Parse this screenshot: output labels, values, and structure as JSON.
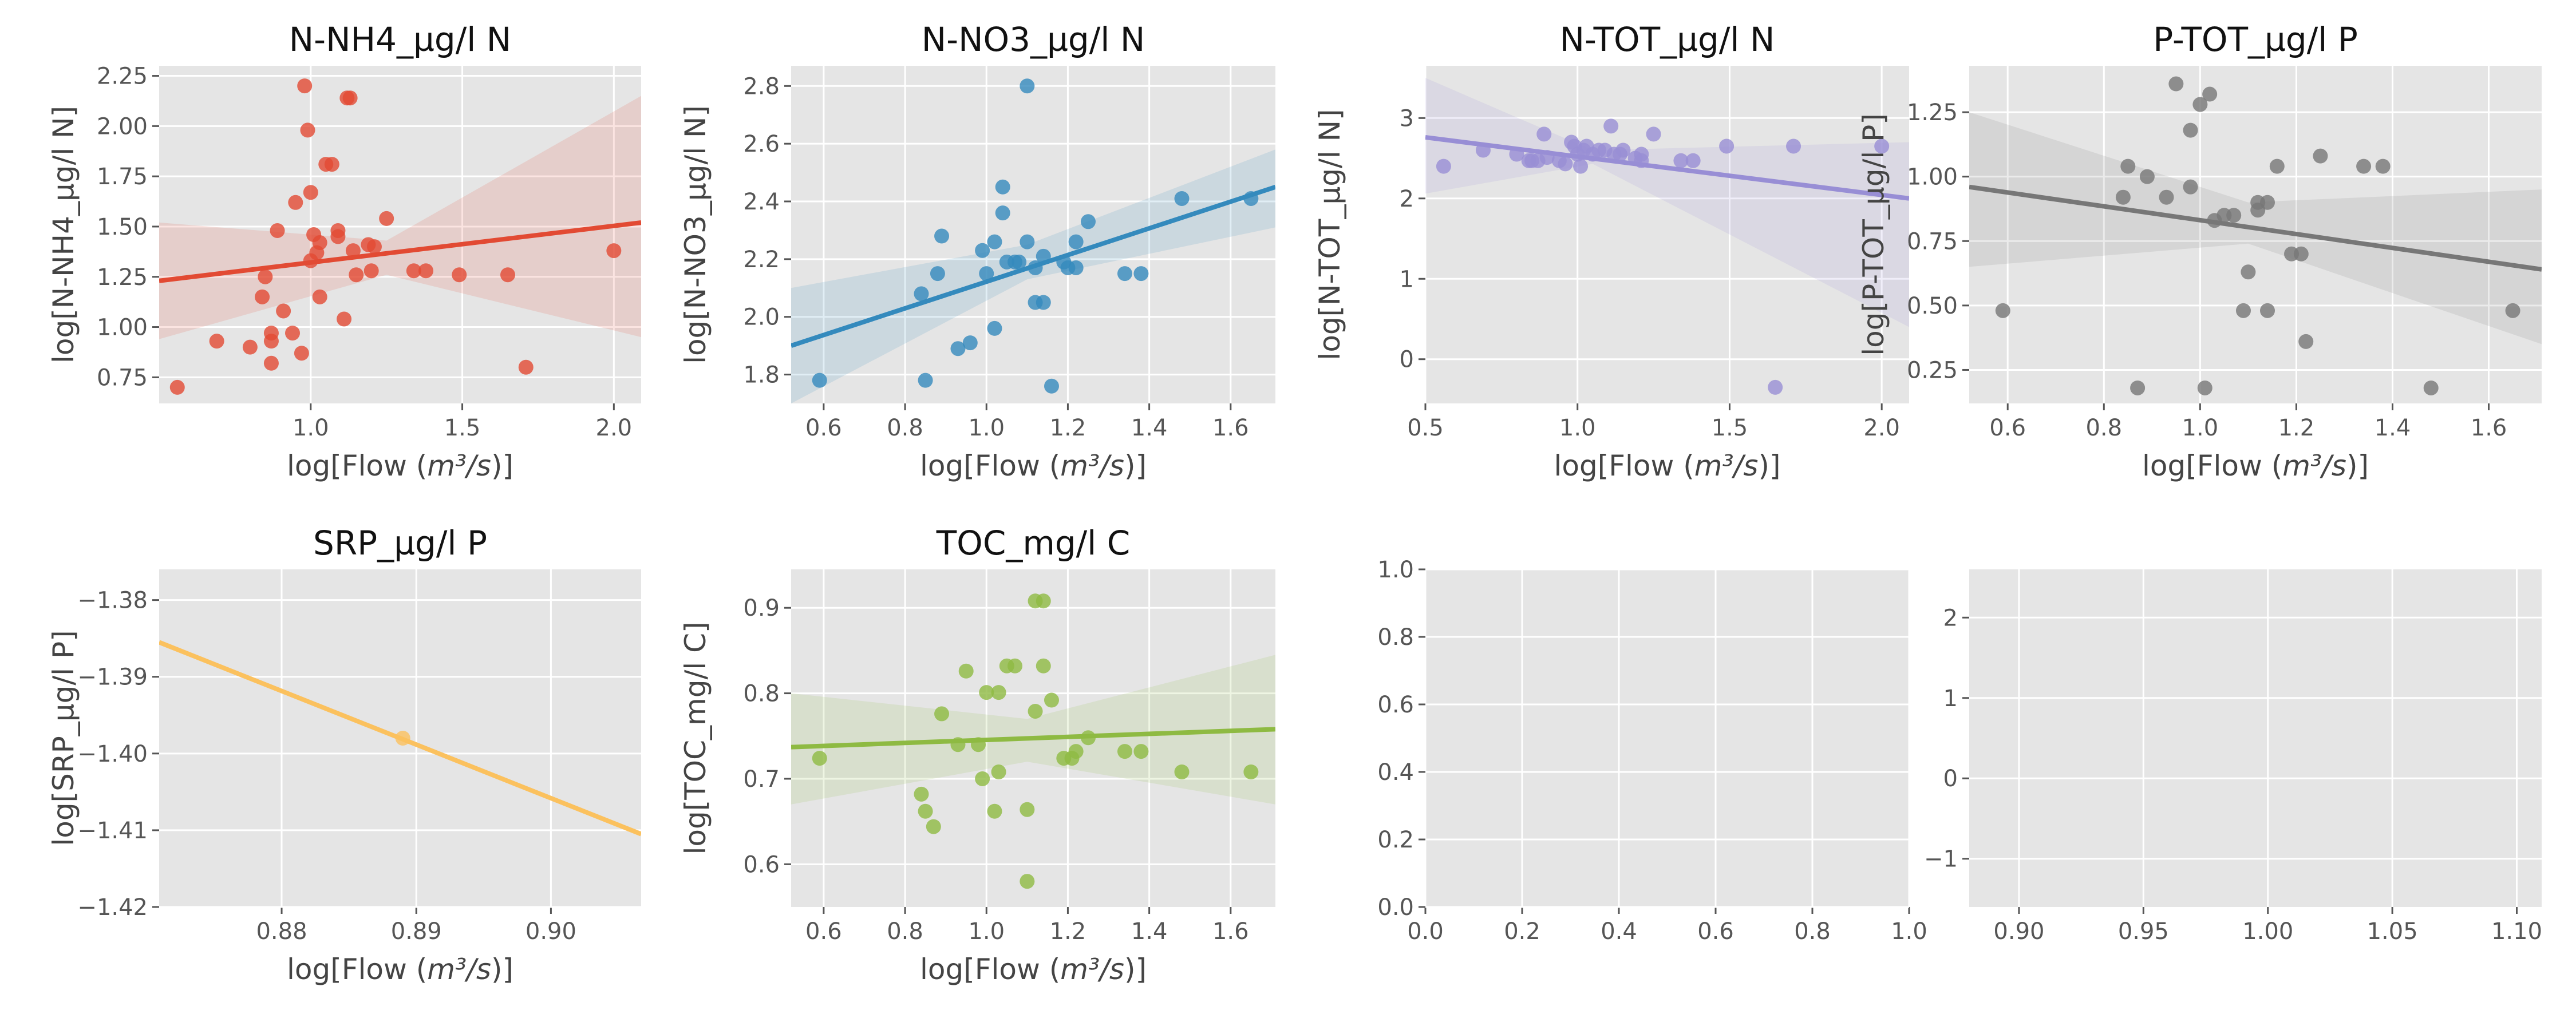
{
  "chart_data": [
    {
      "type": "scatter",
      "title": "N-NH4_µg/l N",
      "xlabel": "log[Flow (m³/s)]",
      "ylabel": "log[N-NH4_µg/l N]",
      "xlim": [
        0.5,
        2.09
      ],
      "ylim": [
        0.62,
        2.3
      ],
      "xticks": [
        "1.0",
        "1.5",
        "2.0"
      ],
      "yticks": [
        "0.75",
        "1.00",
        "1.25",
        "1.50",
        "1.75",
        "2.00",
        "2.25"
      ],
      "color": "#E24A33",
      "show_regression": true,
      "regression_line": [
        [
          0.5,
          1.23
        ],
        [
          2.09,
          1.52
        ]
      ],
      "ci_band": {
        "x": [
          0.5,
          1.25,
          2.09
        ],
        "lower": [
          0.94,
          1.26,
          0.95
        ],
        "upper": [
          1.52,
          1.43,
          2.15
        ]
      },
      "points": [
        [
          0.56,
          0.7
        ],
        [
          0.69,
          0.93
        ],
        [
          0.8,
          0.9
        ],
        [
          0.84,
          1.15
        ],
        [
          0.85,
          1.25
        ],
        [
          0.87,
          0.97
        ],
        [
          0.87,
          0.93
        ],
        [
          0.87,
          0.82
        ],
        [
          0.89,
          1.48
        ],
        [
          0.91,
          1.08
        ],
        [
          0.94,
          0.97
        ],
        [
          0.95,
          1.62
        ],
        [
          0.97,
          0.87
        ],
        [
          0.98,
          2.2
        ],
        [
          0.99,
          1.98
        ],
        [
          1.0,
          1.67
        ],
        [
          1.0,
          1.33
        ],
        [
          1.01,
          1.46
        ],
        [
          1.02,
          1.37
        ],
        [
          1.03,
          1.42
        ],
        [
          1.03,
          1.15
        ],
        [
          1.05,
          1.81
        ],
        [
          1.07,
          1.81
        ],
        [
          1.09,
          1.48
        ],
        [
          1.09,
          1.45
        ],
        [
          1.11,
          1.04
        ],
        [
          1.12,
          2.14
        ],
        [
          1.13,
          2.14
        ],
        [
          1.14,
          1.38
        ],
        [
          1.15,
          1.26
        ],
        [
          1.19,
          1.41
        ],
        [
          1.2,
          1.28
        ],
        [
          1.21,
          1.4
        ],
        [
          1.25,
          1.54
        ],
        [
          1.34,
          1.28
        ],
        [
          1.38,
          1.28
        ],
        [
          1.49,
          1.26
        ],
        [
          1.65,
          1.26
        ],
        [
          1.71,
          0.8
        ],
        [
          2.0,
          1.38
        ]
      ]
    },
    {
      "type": "scatter",
      "title": "N-NO3_µg/l N",
      "xlabel": "log[Flow (m³/s)]",
      "ylabel": "log[N-NO3_µg/l N]",
      "xlim": [
        0.52,
        1.71
      ],
      "ylim": [
        1.7,
        2.87
      ],
      "xticks": [
        "0.6",
        "0.8",
        "1.0",
        "1.2",
        "1.4",
        "1.6"
      ],
      "yticks": [
        "1.8",
        "2.0",
        "2.2",
        "2.4",
        "2.6",
        "2.8"
      ],
      "color": "#348ABD",
      "show_regression": true,
      "regression_line": [
        [
          0.52,
          1.9
        ],
        [
          1.71,
          2.45
        ]
      ],
      "ci_band": {
        "x": [
          0.52,
          1.1,
          1.71
        ],
        "lower": [
          1.7,
          2.13,
          2.31
        ],
        "upper": [
          2.1,
          2.25,
          2.58
        ]
      },
      "points": [
        [
          0.59,
          1.78
        ],
        [
          0.84,
          2.08
        ],
        [
          0.85,
          1.78
        ],
        [
          0.88,
          2.15
        ],
        [
          0.89,
          2.28
        ],
        [
          0.93,
          1.89
        ],
        [
          0.96,
          1.91
        ],
        [
          0.99,
          2.23
        ],
        [
          1.0,
          2.15
        ],
        [
          1.02,
          1.96
        ],
        [
          1.02,
          2.26
        ],
        [
          1.04,
          2.45
        ],
        [
          1.04,
          2.36
        ],
        [
          1.05,
          2.19
        ],
        [
          1.07,
          2.19
        ],
        [
          1.08,
          2.19
        ],
        [
          1.1,
          2.8
        ],
        [
          1.1,
          2.26
        ],
        [
          1.12,
          2.17
        ],
        [
          1.12,
          2.05
        ],
        [
          1.14,
          2.05
        ],
        [
          1.14,
          2.21
        ],
        [
          1.16,
          1.76
        ],
        [
          1.19,
          2.19
        ],
        [
          1.2,
          2.17
        ],
        [
          1.22,
          2.26
        ],
        [
          1.22,
          2.17
        ],
        [
          1.25,
          2.33
        ],
        [
          1.34,
          2.15
        ],
        [
          1.38,
          2.15
        ],
        [
          1.48,
          2.41
        ],
        [
          1.65,
          2.41
        ]
      ]
    },
    {
      "type": "scatter",
      "title": "N-TOT_µg/l N",
      "xlabel": "log[Flow (m³/s)]",
      "ylabel": "log[N-TOT_µg/l N]",
      "xlim": [
        0.5,
        2.09
      ],
      "ylim": [
        -0.55,
        3.65
      ],
      "xticks": [
        "0.5",
        "1.0",
        "1.5",
        "2.0"
      ],
      "yticks": [
        "0",
        "1",
        "2",
        "3"
      ],
      "color": "#988ED5",
      "show_regression": true,
      "regression_line": [
        [
          0.5,
          2.76
        ],
        [
          2.09,
          2.0
        ]
      ],
      "ci_band": {
        "x": [
          0.5,
          1.05,
          2.09
        ],
        "lower": [
          2.06,
          2.43,
          0.4
        ],
        "upper": [
          3.5,
          2.6,
          2.7
        ]
      },
      "points": [
        [
          0.56,
          2.4
        ],
        [
          0.69,
          2.6
        ],
        [
          0.8,
          2.55
        ],
        [
          0.84,
          2.47
        ],
        [
          0.85,
          2.47
        ],
        [
          0.87,
          2.47
        ],
        [
          0.89,
          2.8
        ],
        [
          0.9,
          2.51
        ],
        [
          0.94,
          2.47
        ],
        [
          0.96,
          2.43
        ],
        [
          0.98,
          2.7
        ],
        [
          0.99,
          2.65
        ],
        [
          1.0,
          2.55
        ],
        [
          1.01,
          2.4
        ],
        [
          1.02,
          2.6
        ],
        [
          1.03,
          2.65
        ],
        [
          1.05,
          2.55
        ],
        [
          1.07,
          2.6
        ],
        [
          1.09,
          2.6
        ],
        [
          1.11,
          2.9
        ],
        [
          1.12,
          2.55
        ],
        [
          1.14,
          2.55
        ],
        [
          1.15,
          2.6
        ],
        [
          1.19,
          2.5
        ],
        [
          1.21,
          2.47
        ],
        [
          1.21,
          2.55
        ],
        [
          1.25,
          2.8
        ],
        [
          1.34,
          2.47
        ],
        [
          1.38,
          2.47
        ],
        [
          1.49,
          2.65
        ],
        [
          1.65,
          -0.35
        ],
        [
          1.71,
          2.65
        ],
        [
          2.0,
          2.65
        ]
      ]
    },
    {
      "type": "scatter",
      "title": "P-TOT_µg/l P",
      "xlabel": "log[Flow (m³/s)]",
      "ylabel": "log[P-TOT_µg/l P]",
      "xlim": [
        0.52,
        1.71
      ],
      "ylim": [
        0.12,
        1.43
      ],
      "xticks": [
        "0.6",
        "0.8",
        "1.0",
        "1.2",
        "1.4",
        "1.6"
      ],
      "yticks": [
        "0.25",
        "0.50",
        "0.75",
        "1.00",
        "1.25"
      ],
      "color": "#777777",
      "show_regression": true,
      "regression_line": [
        [
          0.52,
          0.96
        ],
        [
          1.71,
          0.64
        ]
      ],
      "ci_band": {
        "x": [
          0.52,
          1.1,
          1.71
        ],
        "lower": [
          0.65,
          0.74,
          0.35
        ],
        "upper": [
          1.25,
          0.9,
          0.95
        ]
      },
      "points": [
        [
          0.59,
          0.48
        ],
        [
          0.84,
          0.92
        ],
        [
          0.85,
          1.04
        ],
        [
          0.87,
          0.18
        ],
        [
          0.89,
          1.0
        ],
        [
          0.93,
          0.92
        ],
        [
          0.95,
          1.36
        ],
        [
          0.98,
          0.96
        ],
        [
          0.98,
          1.18
        ],
        [
          1.0,
          1.28
        ],
        [
          1.01,
          0.18
        ],
        [
          1.02,
          1.32
        ],
        [
          1.03,
          0.83
        ],
        [
          1.05,
          0.85
        ],
        [
          1.07,
          0.85
        ],
        [
          1.09,
          0.48
        ],
        [
          1.1,
          0.63
        ],
        [
          1.12,
          0.9
        ],
        [
          1.12,
          0.87
        ],
        [
          1.14,
          0.48
        ],
        [
          1.14,
          0.9
        ],
        [
          1.16,
          1.04
        ],
        [
          1.19,
          0.7
        ],
        [
          1.21,
          0.7
        ],
        [
          1.22,
          0.36
        ],
        [
          1.25,
          1.08
        ],
        [
          1.34,
          1.04
        ],
        [
          1.38,
          1.04
        ],
        [
          1.48,
          0.18
        ],
        [
          1.65,
          0.48
        ]
      ]
    },
    {
      "type": "scatter",
      "title": "SRP_µg/l P",
      "xlabel": "log[Flow (m³/s)]",
      "ylabel": "log[SRP_µg/l P]",
      "xlim": [
        0.8709,
        0.9067
      ],
      "ylim": [
        -1.42,
        -1.376
      ],
      "xticks": [
        "0.88",
        "0.89",
        "0.90"
      ],
      "yticks": [
        "−1.42",
        "−1.41",
        "−1.40",
        "−1.39",
        "−1.38"
      ],
      "color": "#FBC15E",
      "show_regression": true,
      "regression_line": [
        [
          0.8709,
          -1.3855
        ],
        [
          0.9067,
          -1.4105
        ]
      ],
      "ci_band": null,
      "points": [
        [
          0.889,
          -1.398
        ]
      ]
    },
    {
      "type": "scatter",
      "title": "TOC_mg/l C",
      "xlabel": "log[Flow (m³/s)]",
      "ylabel": "log[TOC_mg/l C]",
      "xlim": [
        0.52,
        1.71
      ],
      "ylim": [
        0.55,
        0.945
      ],
      "xticks": [
        "0.6",
        "0.8",
        "1.0",
        "1.2",
        "1.4",
        "1.6"
      ],
      "yticks": [
        "0.6",
        "0.7",
        "0.8",
        "0.9"
      ],
      "color": "#8EBA42",
      "show_regression": true,
      "regression_line": [
        [
          0.52,
          0.737
        ],
        [
          1.71,
          0.758
        ]
      ],
      "ci_band": {
        "x": [
          0.52,
          1.1,
          1.71
        ],
        "lower": [
          0.67,
          0.72,
          0.67
        ],
        "upper": [
          0.8,
          0.77,
          0.845
        ]
      },
      "points": [
        [
          0.59,
          0.724
        ],
        [
          0.84,
          0.682
        ],
        [
          0.85,
          0.662
        ],
        [
          0.87,
          0.644
        ],
        [
          0.89,
          0.776
        ],
        [
          0.93,
          0.74
        ],
        [
          0.95,
          0.826
        ],
        [
          0.98,
          0.74
        ],
        [
          0.99,
          0.7
        ],
        [
          1.0,
          0.801
        ],
        [
          1.02,
          0.662
        ],
        [
          1.03,
          0.801
        ],
        [
          1.03,
          0.708
        ],
        [
          1.05,
          0.832
        ],
        [
          1.07,
          0.832
        ],
        [
          1.1,
          0.58
        ],
        [
          1.1,
          0.664
        ],
        [
          1.12,
          0.779
        ],
        [
          1.12,
          0.908
        ],
        [
          1.14,
          0.908
        ],
        [
          1.14,
          0.832
        ],
        [
          1.16,
          0.792
        ],
        [
          1.19,
          0.724
        ],
        [
          1.21,
          0.724
        ],
        [
          1.22,
          0.732
        ],
        [
          1.25,
          0.748
        ],
        [
          1.34,
          0.732
        ],
        [
          1.38,
          0.732
        ],
        [
          1.48,
          0.708
        ],
        [
          1.65,
          0.708
        ]
      ]
    },
    {
      "type": "scatter",
      "title": "",
      "xlabel": "",
      "ylabel": "",
      "xlim": [
        0,
        1
      ],
      "ylim": [
        0,
        1
      ],
      "xticks": [
        "0.0",
        "0.2",
        "0.4",
        "0.6",
        "0.8",
        "1.0"
      ],
      "yticks": [
        "0.0",
        "0.2",
        "0.4",
        "0.6",
        "0.8",
        "1.0"
      ],
      "color": "#777777",
      "show_regression": false,
      "regression_line": null,
      "ci_band": null,
      "points": []
    },
    {
      "type": "scatter",
      "title": "",
      "xlabel": "",
      "ylabel": "",
      "xlim": [
        0.88,
        1.11
      ],
      "ylim": [
        -1.6,
        2.6
      ],
      "xticks": [
        "0.90",
        "0.95",
        "1.00",
        "1.05",
        "1.10"
      ],
      "yticks": [
        "−1",
        "0",
        "1",
        "2"
      ],
      "color": "#777777",
      "show_regression": false,
      "regression_line": null,
      "ci_band": null,
      "points": []
    }
  ]
}
